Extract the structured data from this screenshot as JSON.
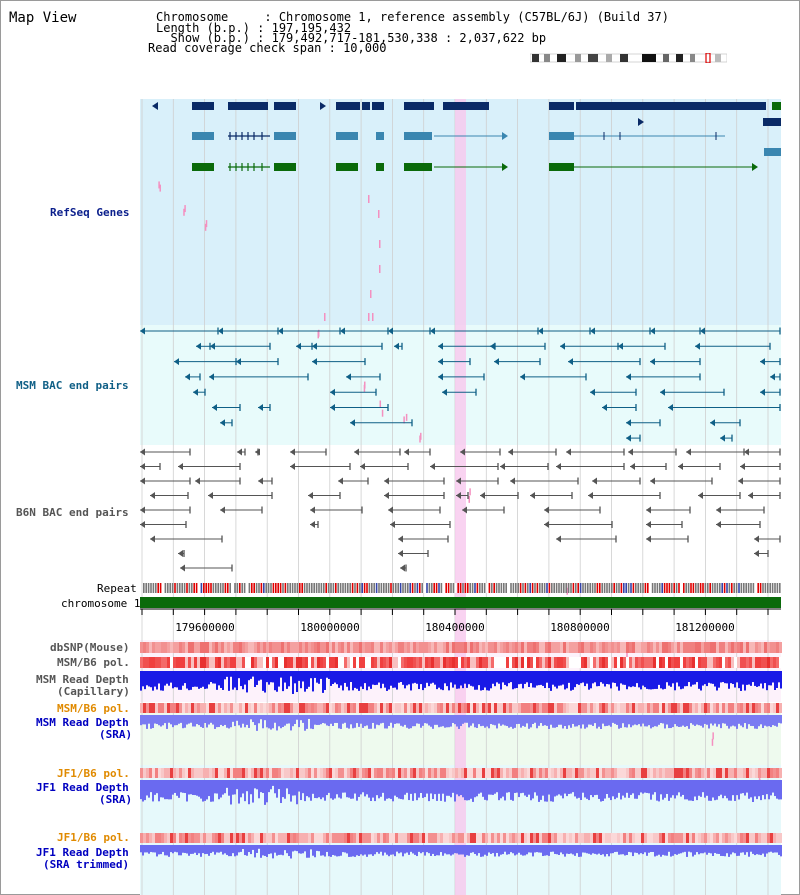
{
  "app": {
    "title": "Map View"
  },
  "header": {
    "chromosome_line": "Chromosome     : Chromosome 1, reference assembly (C57BL/6J) (Build 37)",
    "length_line": "Length (b.p.) : 197,195,432",
    "show_line": "  Show (b.p.) : 179,492,717-181,530,338 : 2,037,622 bp",
    "coverage_line": "Read coverage check span : 10,000"
  },
  "tracks": {
    "refseq": {
      "label": "RefSeq Genes",
      "color": "#0b1f8c",
      "bg": "#d9f0fa"
    },
    "msm_bac": {
      "label": "MSM BAC end pairs",
      "color": "#0f5f86",
      "bg": "#e8fbfb"
    },
    "b6n_bac": {
      "label": "B6N BAC end pairs",
      "color": "#555555",
      "bg": "#ffffff"
    },
    "repeat": {
      "label": "Repeat"
    },
    "chromosome": {
      "label": "chromosome 1",
      "color": "#0a6a0a"
    },
    "dbsnp": {
      "label": "dbSNP(Mouse)"
    },
    "msm_b6_pol": {
      "label": "MSM/B6 pol."
    },
    "msm_depth_cap": {
      "label1": "MSM Read Depth",
      "label2": "(Capillary)"
    },
    "msm_b6_pol_sra": {
      "label": "MSM/B6 pol.",
      "color": "#e08a00"
    },
    "msm_depth_sra": {
      "label1": "MSM Read Depth",
      "label2": "(SRA)",
      "color": "#0000c0"
    },
    "jf1_b6_pol": {
      "label": "JF1/B6 pol.",
      "color": "#e08a00"
    },
    "jf1_depth_sra": {
      "label1": "JF1 Read Depth",
      "label2": "(SRA)",
      "color": "#0000c0"
    },
    "jf1_b6_pol2": {
      "label": "JF1/B6 pol.",
      "color": "#e08a00"
    },
    "jf1_depth_trim": {
      "label1": "JF1 Read Depth",
      "label2": "(SRA trimmed)",
      "color": "#0000c0"
    }
  },
  "axis": {
    "ticks": [
      "179600000",
      "180000000",
      "180400000",
      "180800000",
      "181200000"
    ]
  },
  "colors": {
    "refseq_dark": "#0a2a66",
    "refseq_mid": "#3a86b0",
    "refseq_green": "#0a6a0a",
    "highlight": "#f7c8ee",
    "snp_red": "#f04040",
    "depth_blue": "#1a1ae6",
    "depth_light": "#7070f0"
  }
}
